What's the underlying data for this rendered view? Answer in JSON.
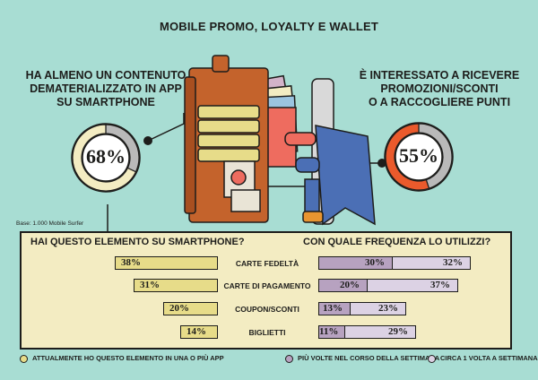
{
  "title": "MOBILE PROMO, LOYALTY E WALLET",
  "left_headline": [
    "HA ALMENO UN CONTENUTO",
    "DEMATERIALIZZATO IN APP",
    "SU SMARTPHONE"
  ],
  "right_headline": [
    "È INTERESSATO A RICEVERE",
    "PROMOZIONI/SCONTI",
    "O A RACCOGLIERE PUNTI"
  ],
  "left_donut": {
    "value": 68,
    "label": "68%",
    "color": "#f3ecc2",
    "rest_color": "#b9b9b9"
  },
  "right_donut": {
    "value": 55,
    "label": "55%",
    "color": "#ea5a2c",
    "rest_color": "#b9b9b9"
  },
  "base_note": "Base: 1.000 Mobile Surfer",
  "colors": {
    "background": "#a8ddd3",
    "panel": "#f3ecc2",
    "yellow": "#e7dc89",
    "purple": "#b7a2c0",
    "lilac": "#dcd2e4"
  },
  "chart_data": [
    {
      "type": "donut",
      "title": "HA ALMENO UN CONTENUTO DEMATERIALIZZATO IN APP SU SMARTPHONE",
      "values": [
        68
      ],
      "unit": "%"
    },
    {
      "type": "donut",
      "title": "È INTERESSATO A RICEVERE PROMOZIONI/SCONTI O A RACCOGLIERE PUNTI",
      "values": [
        55
      ],
      "unit": "%"
    },
    {
      "type": "bar",
      "title": "HAI QUESTO ELEMENTO SU SMARTPHONE?",
      "categories": [
        "CARTE FEDELTÀ",
        "CARTE DI PAGAMENTO",
        "COUPON/SCONTI",
        "BIGLIETTI"
      ],
      "series": [
        {
          "name": "ATTUALMENTE HO QUESTO ELEMENTO IN UNA O PIÙ APP",
          "values": [
            38,
            31,
            20,
            14
          ],
          "labels": [
            "38%",
            "31%",
            "20%",
            "14%"
          ]
        }
      ],
      "max": 38
    },
    {
      "type": "bar",
      "title": "CON QUALE FREQUENZA LO UTILIZZI?",
      "categories": [
        "CARTE FEDELTÀ",
        "CARTE DI PAGAMENTO",
        "COUPON/SCONTI",
        "BIGLIETTI"
      ],
      "series": [
        {
          "name": "PIÙ VOLTE NEL CORSO DELLA SETTIMANA",
          "values": [
            30,
            20,
            13,
            11
          ],
          "labels": [
            "30%",
            "20%",
            "13%",
            "11%"
          ]
        },
        {
          "name": "CIRCA 1 VOLTA A SETTIMANA",
          "values": [
            32,
            37,
            23,
            29
          ],
          "labels": [
            "32%",
            "37%",
            "23%",
            "29%"
          ]
        }
      ],
      "stacked": true
    }
  ],
  "legend": [
    {
      "label": "ATTUALMENTE HO QUESTO ELEMENTO IN UNA O PIÙ APP",
      "color": "#e7dc89"
    },
    {
      "label": "PIÙ VOLTE NEL CORSO DELLA SETTIMANA",
      "color": "#b7a2c0"
    },
    {
      "label": "CIRCA 1 VOLTA A SETTIMANA",
      "color": "#dcd2e4"
    }
  ]
}
